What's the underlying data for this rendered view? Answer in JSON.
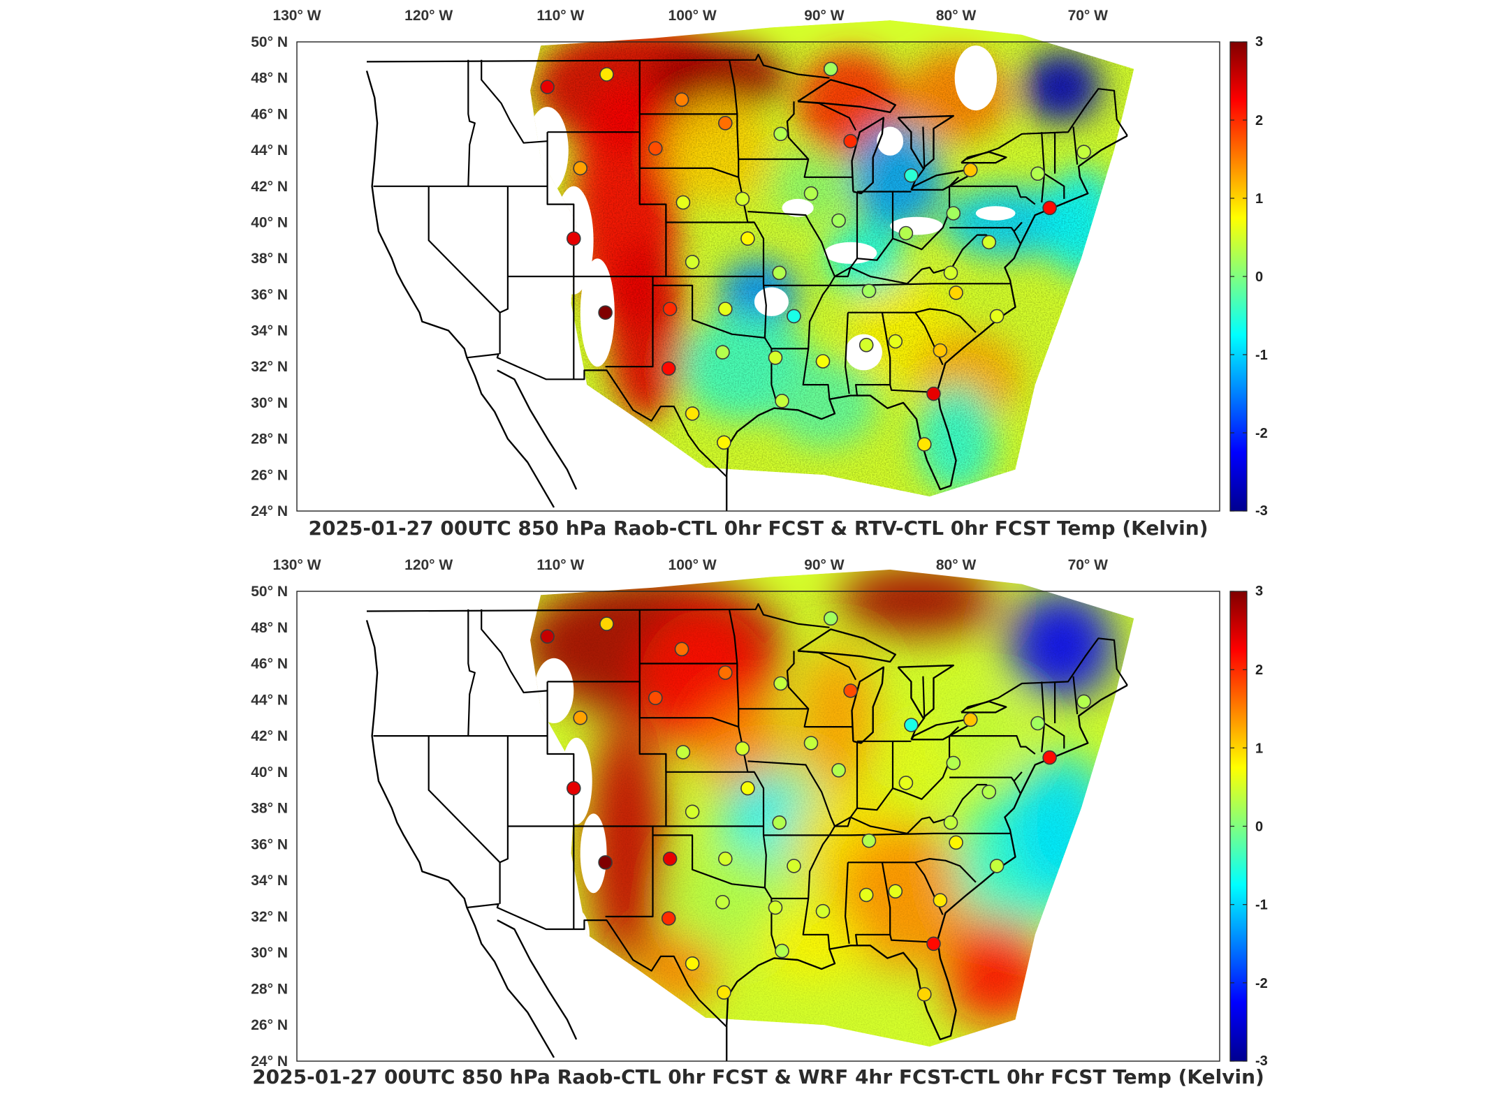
{
  "colorbar": {
    "min": -3,
    "max": 3,
    "ticks": [
      3,
      2,
      1,
      0,
      -1,
      -2,
      -3
    ],
    "colormap": [
      "#00008f",
      "#0000ff",
      "#0080ff",
      "#00ffff",
      "#80ff80",
      "#ffff00",
      "#ff8000",
      "#ff0000",
      "#800000"
    ]
  },
  "axes": {
    "lon_labels": [
      "130° W",
      "120° W",
      "110° W",
      "100° W",
      "90° W",
      "80° W",
      "70° W"
    ],
    "lat_labels": [
      "50° N",
      "48° N",
      "46° N",
      "44° N",
      "42° N",
      "40° N",
      "38° N",
      "36° N",
      "34° N",
      "32° N",
      "30° N",
      "28° N",
      "26° N",
      "24° N"
    ]
  },
  "panels": [
    {
      "id": "top",
      "title": "2025-01-27 00UTC 850 hPa Raob-CTL 0hr FCST & RTV-CTL 0hr FCST Temp (Kelvin)"
    },
    {
      "id": "bottom",
      "title": "2025-01-27 00UTC 850 hPa Raob-CTL 0hr FCST & WRF 4hr FCST-CTL 0hr FCST Temp (Kelvin)"
    }
  ],
  "stations": [
    {
      "lon": -111.0,
      "lat": 47.5,
      "top": 2.4,
      "bottom": 2.6
    },
    {
      "lon": -106.5,
      "lat": 48.2,
      "top": 0.9,
      "bottom": 1.0
    },
    {
      "lon": -100.8,
      "lat": 46.8,
      "top": 1.5,
      "bottom": 1.6
    },
    {
      "lon": -97.5,
      "lat": 45.5,
      "top": 1.6,
      "bottom": 1.6
    },
    {
      "lon": -102.8,
      "lat": 44.1,
      "top": 1.8,
      "bottom": 1.8
    },
    {
      "lon": -108.5,
      "lat": 43.0,
      "top": 1.3,
      "bottom": 1.3
    },
    {
      "lon": -93.3,
      "lat": 44.9,
      "top": 0.3,
      "bottom": 0.4
    },
    {
      "lon": -89.5,
      "lat": 48.5,
      "top": 0.2,
      "bottom": 0.2
    },
    {
      "lon": -88.0,
      "lat": 44.5,
      "top": 2.0,
      "bottom": 1.8
    },
    {
      "lon": -100.7,
      "lat": 41.1,
      "top": 0.6,
      "bottom": 0.4
    },
    {
      "lon": -96.2,
      "lat": 41.3,
      "top": 0.5,
      "bottom": 0.5
    },
    {
      "lon": -91.0,
      "lat": 41.6,
      "top": 0.3,
      "bottom": 0.4
    },
    {
      "lon": -88.9,
      "lat": 40.1,
      "top": 0.2,
      "bottom": 0.3
    },
    {
      "lon": -83.4,
      "lat": 42.6,
      "top": -0.5,
      "bottom": -0.6
    },
    {
      "lon": -80.2,
      "lat": 40.5,
      "top": 0.2,
      "bottom": 0.3
    },
    {
      "lon": -78.9,
      "lat": 42.9,
      "top": 1.1,
      "bottom": 1.1
    },
    {
      "lon": -73.8,
      "lat": 42.7,
      "top": 0.3,
      "bottom": 0.2
    },
    {
      "lon": -70.3,
      "lat": 43.9,
      "top": 0.4,
      "bottom": 0.3
    },
    {
      "lon": -72.9,
      "lat": 40.8,
      "top": 2.2,
      "bottom": 2.2
    },
    {
      "lon": -83.8,
      "lat": 39.4,
      "top": 0.3,
      "bottom": 0.6
    },
    {
      "lon": -77.5,
      "lat": 38.9,
      "top": 0.5,
      "bottom": 0.3
    },
    {
      "lon": -109.0,
      "lat": 39.1,
      "top": 2.4,
      "bottom": 2.4
    },
    {
      "lon": -106.6,
      "lat": 35.0,
      "top": 3.0,
      "bottom": 3.0
    },
    {
      "lon": -101.7,
      "lat": 35.2,
      "top": 2.0,
      "bottom": 2.4
    },
    {
      "lon": -100.0,
      "lat": 37.8,
      "top": 0.5,
      "bottom": 0.5
    },
    {
      "lon": -95.8,
      "lat": 39.1,
      "top": 0.8,
      "bottom": 0.7
    },
    {
      "lon": -97.5,
      "lat": 35.2,
      "top": 0.6,
      "bottom": 0.5
    },
    {
      "lon": -93.4,
      "lat": 37.2,
      "top": 0.3,
      "bottom": 0.3
    },
    {
      "lon": -92.3,
      "lat": 34.8,
      "top": -0.6,
      "bottom": 0.5
    },
    {
      "lon": -86.6,
      "lat": 36.2,
      "top": 0.2,
      "bottom": 0.3
    },
    {
      "lon": -80.4,
      "lat": 37.2,
      "top": 0.5,
      "bottom": 0.4
    },
    {
      "lon": -80.0,
      "lat": 36.1,
      "top": 1.0,
      "bottom": 0.8
    },
    {
      "lon": -76.9,
      "lat": 34.8,
      "top": 0.6,
      "bottom": 0.4
    },
    {
      "lon": -101.8,
      "lat": 31.9,
      "top": 2.2,
      "bottom": 2.0
    },
    {
      "lon": -97.7,
      "lat": 32.8,
      "top": 0.3,
      "bottom": 0.4
    },
    {
      "lon": -93.7,
      "lat": 32.5,
      "top": 0.5,
      "bottom": 0.5
    },
    {
      "lon": -90.1,
      "lat": 32.3,
      "top": 0.7,
      "bottom": 0.5
    },
    {
      "lon": -86.8,
      "lat": 33.2,
      "top": 0.5,
      "bottom": 0.6
    },
    {
      "lon": -84.6,
      "lat": 33.4,
      "top": 0.6,
      "bottom": 0.6
    },
    {
      "lon": -81.2,
      "lat": 32.9,
      "top": 1.1,
      "bottom": 0.9
    },
    {
      "lon": -81.7,
      "lat": 30.5,
      "top": 2.4,
      "bottom": 2.2
    },
    {
      "lon": -93.2,
      "lat": 30.1,
      "top": 0.4,
      "bottom": 0.3
    },
    {
      "lon": -100.0,
      "lat": 29.4,
      "top": 0.9,
      "bottom": 0.8
    },
    {
      "lon": -97.6,
      "lat": 27.8,
      "top": 0.8,
      "bottom": 0.9
    },
    {
      "lon": -82.4,
      "lat": 27.7,
      "top": 0.9,
      "bottom": 1.0
    }
  ]
}
